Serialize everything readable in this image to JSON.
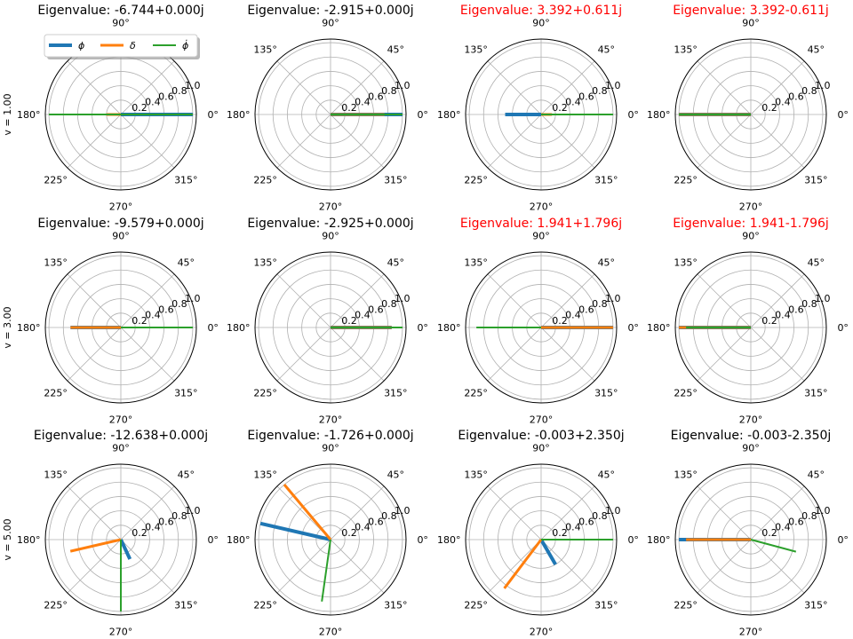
{
  "chart_data": {
    "type": "polar",
    "colors": {
      "phi": "#1f77b4",
      "delta": "#ff7f0e",
      "phidot": "#2ca02c",
      "unstable": "#ff0000",
      "stable": "#000000",
      "grid": "#b0b0b0"
    },
    "angle_ticks": [
      "0°",
      "45°",
      "90°",
      "135°",
      "180°",
      "225°",
      "270°",
      "315°"
    ],
    "radial_ticks": [
      "0.2",
      "0.4",
      "0.6",
      "0.8",
      "1.0"
    ],
    "rlim": [
      0,
      1.05
    ],
    "legend": {
      "entries": [
        "ϕ",
        "δ",
        "ϕ̇"
      ],
      "location": "upper left of first panel"
    },
    "row_labels": [
      "v = 1.00",
      "v = 3.00",
      "v = 5.00"
    ],
    "panels": [
      {
        "title": "Eigenvalue: -6.744+0.000j",
        "unstable": false,
        "series": [
          {
            "r": 1.0,
            "theta": 0
          },
          {
            "r": 0.2,
            "theta": 180
          },
          {
            "r": 1.0,
            "theta": 180,
            "r2": 1.0,
            "theta2": 0
          }
        ]
      },
      {
        "title": "Eigenvalue: -2.915+0.000j",
        "unstable": false,
        "series": [
          {
            "r": 1.0,
            "theta": 0
          },
          {
            "r": 0.75,
            "theta": 0
          },
          {
            "r": 1.0,
            "theta": 0
          }
        ]
      },
      {
        "title": "Eigenvalue: 3.392+0.611j",
        "unstable": true,
        "series": [
          {
            "r": 0.5,
            "theta": 180
          },
          {
            "r": 0.15,
            "theta": 0
          },
          {
            "r": 1.0,
            "theta": 0
          }
        ]
      },
      {
        "title": "Eigenvalue: 3.392-0.611j",
        "unstable": true,
        "series": [
          {
            "r": 1.0,
            "theta": 180
          },
          {
            "r": 1.0,
            "theta": 180
          },
          {
            "r": 1.0,
            "theta": 180
          }
        ]
      },
      {
        "title": "Eigenvalue: -9.579+0.000j",
        "unstable": false,
        "series": [
          {
            "r": 0.7,
            "theta": 180
          },
          {
            "r": 0.7,
            "theta": 180
          },
          {
            "r": 1.0,
            "theta": 0
          }
        ]
      },
      {
        "title": "Eigenvalue: -2.925+0.000j",
        "unstable": false,
        "series": [
          {
            "r": 0.85,
            "theta": 0
          },
          {
            "r": 0.85,
            "theta": 0
          },
          {
            "r": 1.0,
            "theta": 0
          }
        ]
      },
      {
        "title": "Eigenvalue: 1.941+1.796j",
        "unstable": true,
        "series": [
          {
            "r": 1.0,
            "theta": 0
          },
          {
            "r": 1.0,
            "theta": 0
          },
          {
            "r": 0.9,
            "theta": 180
          }
        ]
      },
      {
        "title": "Eigenvalue: 1.941-1.796j",
        "unstable": true,
        "series": [
          {
            "r": 1.0,
            "theta": 180
          },
          {
            "r": 1.0,
            "theta": 180
          },
          {
            "r": 0.9,
            "theta": 180
          }
        ]
      },
      {
        "title": "Eigenvalue: -12.638+0.000j",
        "unstable": false,
        "series": [
          {
            "r": 0.3,
            "theta": 295
          },
          {
            "r": 0.72,
            "theta": 193
          },
          {
            "r": 1.0,
            "theta": 270
          }
        ]
      },
      {
        "title": "Eigenvalue: -1.726+0.000j",
        "unstable": false,
        "series": [
          {
            "r": 1.0,
            "theta": 167
          },
          {
            "r": 1.0,
            "theta": 130
          },
          {
            "r": 0.87,
            "theta": 262
          }
        ]
      },
      {
        "title": "Eigenvalue: -0.003+2.350j",
        "unstable": false,
        "series": [
          {
            "r": 0.4,
            "theta": 300
          },
          {
            "r": 0.85,
            "theta": 233
          },
          {
            "r": 1.0,
            "theta": 0
          }
        ]
      },
      {
        "title": "Eigenvalue: -0.003-2.350j",
        "unstable": false,
        "series": [
          {
            "r": 1.0,
            "theta": 180
          },
          {
            "r": 0.9,
            "theta": 180
          },
          {
            "r": 0.65,
            "theta": 345
          }
        ]
      }
    ]
  }
}
